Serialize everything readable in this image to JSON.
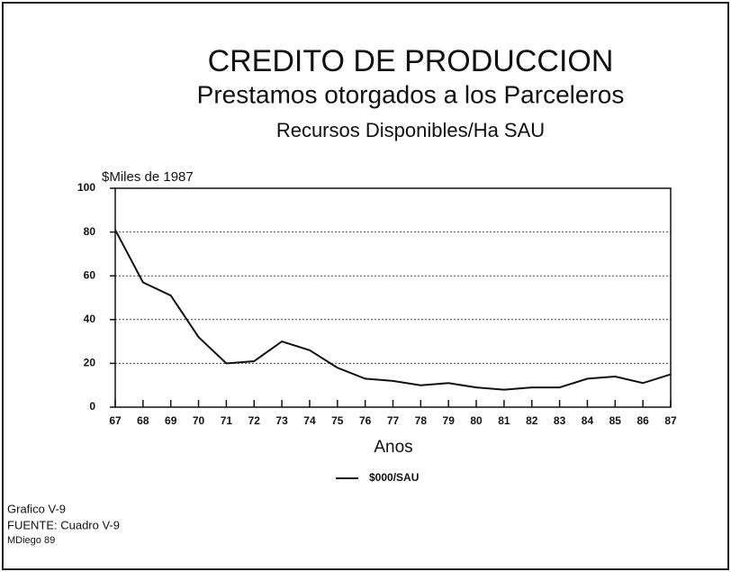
{
  "chart_data": {
    "type": "line",
    "title": "CREDITO DE PRODUCCION",
    "subtitle": "Prestamos otorgados a los Parceleros",
    "subtitle2": "Recursos Disponibles/Ha SAU",
    "y_label": "$Miles de 1987",
    "x_label": "Anos",
    "categories": [
      "67",
      "68",
      "69",
      "70",
      "71",
      "72",
      "73",
      "74",
      "75",
      "76",
      "77",
      "78",
      "79",
      "80",
      "81",
      "82",
      "83",
      "84",
      "85",
      "86",
      "87"
    ],
    "series": [
      {
        "name": "$000/SAU",
        "color": "#111111",
        "values": [
          81,
          57,
          51,
          32,
          20,
          21,
          30,
          26,
          18,
          13,
          12,
          10,
          11,
          9,
          8,
          9,
          9,
          13,
          14,
          11,
          15
        ]
      }
    ],
    "ylim": [
      0,
      100
    ],
    "yticks": [
      0,
      20,
      40,
      60,
      80,
      100
    ],
    "grid": true,
    "notes": [
      "Grafico V-9",
      "FUENTE: Cuadro V-9",
      "MDiego 89"
    ]
  }
}
